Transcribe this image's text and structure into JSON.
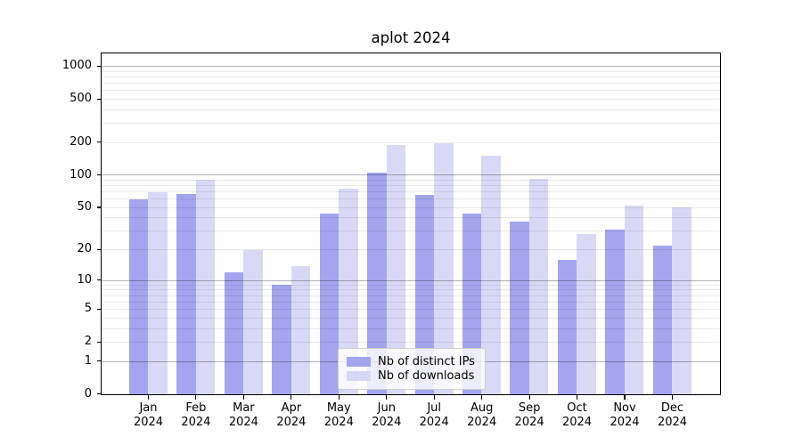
{
  "chart_data": {
    "type": "bar",
    "title": "aplot 2024",
    "categories": [
      "Jan",
      "Feb",
      "Mar",
      "Apr",
      "May",
      "Jun",
      "Jul",
      "Aug",
      "Sep",
      "Oct",
      "Nov",
      "Dec"
    ],
    "x_year": "2024",
    "series": [
      {
        "name": "Nb of distinct IPs",
        "color": "#a4a4ef",
        "values": [
          60,
          67,
          12,
          9,
          44,
          106,
          66,
          44,
          37,
          16,
          31,
          22
        ]
      },
      {
        "name": "Nb of downloads",
        "color": "#d9d9f7",
        "values": [
          70,
          90,
          20,
          14,
          75,
          188,
          195,
          150,
          93,
          28,
          52,
          50
        ]
      }
    ],
    "yscale": "log1p",
    "ylim": [
      0,
      1300
    ],
    "yticks": [
      0,
      1,
      2,
      5,
      10,
      20,
      50,
      100,
      200,
      500,
      1000
    ],
    "gridlines": {
      "major": [
        1,
        10,
        100,
        1000
      ],
      "minor": [
        2,
        3,
        4,
        5,
        6,
        7,
        8,
        9,
        20,
        30,
        40,
        50,
        60,
        70,
        80,
        90,
        200,
        300,
        400,
        500,
        600,
        700,
        800,
        900
      ]
    },
    "grid": true,
    "legend_position": "lower center inside plot"
  },
  "colors": {
    "background": "#ffffff",
    "spine": "#000000",
    "text": "#000000",
    "minor_grid": "rgba(0,0,0,0.085)",
    "major_grid": "rgba(0,0,0,0.30)"
  }
}
